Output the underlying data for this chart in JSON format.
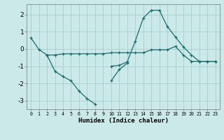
{
  "xlabel": "Humidex (Indice chaleur)",
  "background_color": "#cce9e9",
  "grid_color": "#aacccc",
  "line_color": "#1a6b6b",
  "x_values": [
    0,
    1,
    2,
    3,
    4,
    5,
    6,
    7,
    8,
    9,
    10,
    11,
    12,
    13,
    14,
    15,
    16,
    17,
    18,
    19,
    20,
    21,
    22,
    23
  ],
  "line1_y": [
    0.65,
    -0.03,
    -0.35,
    -0.35,
    -0.28,
    -0.28,
    -0.28,
    -0.28,
    -0.28,
    -0.28,
    -0.22,
    -0.22,
    -0.22,
    -0.22,
    -0.22,
    -0.05,
    -0.05,
    -0.05,
    0.15,
    -0.35,
    -0.72,
    -0.72,
    -0.72,
    -0.72
  ],
  "line2_x": [
    2,
    3,
    4,
    5,
    6,
    7,
    8,
    10,
    11,
    12
  ],
  "line2_y": [
    -0.35,
    -1.3,
    -1.6,
    -1.85,
    -2.45,
    -2.88,
    -3.2,
    -1.85,
    -1.2,
    -0.82
  ],
  "line3_x": [
    10,
    11,
    12,
    13,
    14,
    15,
    16,
    17,
    18,
    19,
    20,
    21,
    22,
    23
  ],
  "line3_y": [
    -1.0,
    -0.95,
    -0.75,
    0.45,
    1.8,
    2.25,
    2.25,
    1.3,
    0.7,
    0.12,
    -0.35,
    -0.72,
    -0.72,
    -0.72
  ],
  "ylim": [
    -3.5,
    2.6
  ],
  "xlim": [
    -0.5,
    23.5
  ],
  "yticks": [
    -3,
    -2,
    -1,
    0,
    1,
    2
  ],
  "xticks": [
    0,
    1,
    2,
    3,
    4,
    5,
    6,
    7,
    8,
    9,
    10,
    11,
    12,
    13,
    14,
    15,
    16,
    17,
    18,
    19,
    20,
    21,
    22,
    23
  ]
}
